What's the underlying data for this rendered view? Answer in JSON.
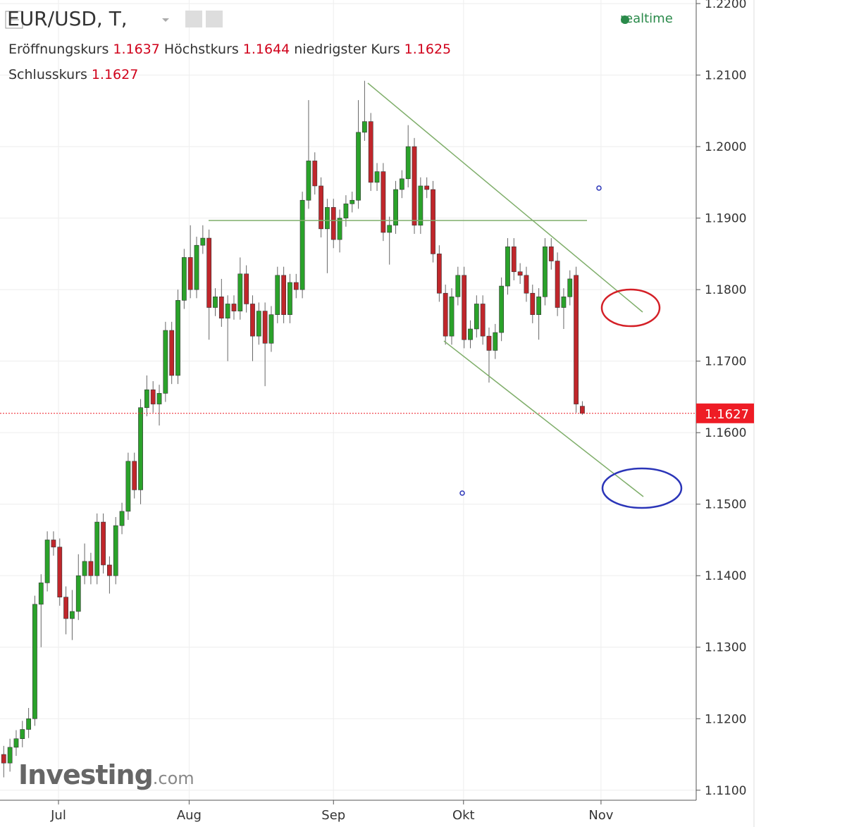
{
  "chart_data": {
    "type": "candlestick",
    "title": "EUR/USD, T,",
    "status": "realtime",
    "ohlc_legend": [
      {
        "label": "Eröffnungskurs",
        "value": 1.1637
      },
      {
        "label": "Höchstkurs",
        "value": 1.1644
      },
      {
        "label": "niedrigster Kurs",
        "value": 1.1625
      },
      {
        "label": "Schlusskurs",
        "value": 1.1627
      }
    ],
    "brand": [
      "Investing",
      ".com"
    ],
    "categories": [
      null,
      null,
      null,
      null,
      null,
      null,
      null,
      null,
      null,
      null,
      null,
      null,
      null,
      null,
      null,
      null,
      null,
      null,
      null,
      null,
      null,
      null,
      null,
      null,
      null,
      null,
      null,
      null,
      null,
      null,
      null,
      null,
      null,
      null,
      null,
      null,
      null,
      null,
      null,
      null,
      null,
      null,
      null,
      null,
      null,
      null,
      null,
      null,
      null,
      null,
      null,
      null,
      null,
      null,
      null,
      null,
      null,
      null,
      null,
      null,
      null,
      null,
      null,
      null,
      null,
      null,
      null,
      null,
      null,
      null,
      null,
      null,
      null,
      null,
      null,
      null,
      null,
      null,
      null,
      null,
      null,
      null,
      null,
      null,
      null,
      null,
      null,
      null,
      null,
      null,
      null,
      null,
      null,
      null
    ],
    "open": [
      1.115,
      1.1138,
      1.116,
      1.1172,
      1.1185,
      1.12,
      1.136,
      1.139,
      1.145,
      1.144,
      1.137,
      1.134,
      1.135,
      1.14,
      1.142,
      1.14,
      1.1475,
      1.1415,
      1.14,
      1.147,
      1.149,
      1.156,
      1.152,
      1.1635,
      1.166,
      1.164,
      1.1655,
      1.1743,
      1.168,
      1.1785,
      1.1845,
      1.18,
      1.1862,
      1.1872,
      1.1775,
      1.179,
      1.176,
      1.178,
      1.177,
      1.1822,
      1.178,
      1.1735,
      1.177,
      1.1725,
      1.1765,
      1.182,
      1.1765,
      1.181,
      1.18,
      1.1925,
      1.198,
      1.1945,
      1.1885,
      1.1915,
      1.187,
      1.19,
      1.192,
      1.1925,
      1.202,
      1.2035,
      1.195,
      1.1965,
      1.188,
      1.189,
      1.194,
      1.1955,
      1.2,
      1.189,
      1.1945,
      1.194,
      1.185,
      1.1795,
      1.1735,
      1.179,
      1.182,
      1.173,
      1.1745,
      1.178,
      1.1735,
      1.1715,
      1.174,
      1.1805,
      1.186,
      1.1825,
      1.182,
      1.1795,
      1.1765,
      1.179,
      1.186,
      1.184,
      1.1775,
      1.179,
      1.182,
      1.1637
    ],
    "high": [
      1.1162,
      1.1172,
      1.1184,
      1.1197,
      1.1215,
      1.1372,
      1.1402,
      1.1462,
      1.1462,
      1.1452,
      1.1385,
      1.138,
      1.143,
      1.1445,
      1.1432,
      1.1487,
      1.1487,
      1.1427,
      1.1482,
      1.1502,
      1.1572,
      1.1572,
      1.1647,
      1.168,
      1.1672,
      1.1667,
      1.1755,
      1.1755,
      1.18,
      1.1857,
      1.189,
      1.1874,
      1.189,
      1.1884,
      1.1802,
      1.1815,
      1.1792,
      1.1792,
      1.1845,
      1.1834,
      1.1792,
      1.1782,
      1.1782,
      1.1777,
      1.1832,
      1.1832,
      1.1822,
      1.1822,
      1.1937,
      1.2065,
      1.1992,
      1.1957,
      1.1927,
      1.1927,
      1.1912,
      1.1932,
      1.1937,
      1.2065,
      1.2092,
      1.2047,
      1.1977,
      1.1977,
      1.1902,
      1.1952,
      1.1967,
      1.203,
      1.2012,
      1.1957,
      1.1957,
      1.1952,
      1.1862,
      1.1807,
      1.1802,
      1.1832,
      1.1832,
      1.1757,
      1.1792,
      1.1792,
      1.1747,
      1.1752,
      1.1817,
      1.1872,
      1.1872,
      1.1837,
      1.1832,
      1.1807,
      1.1802,
      1.1872,
      1.1872,
      1.1852,
      1.1802,
      1.1827,
      1.1832,
      1.1644
    ],
    "low": [
      1.1118,
      1.1126,
      1.1148,
      1.116,
      1.1173,
      1.119,
      1.13,
      1.1378,
      1.1428,
      1.1358,
      1.1318,
      1.131,
      1.1338,
      1.1388,
      1.1388,
      1.1388,
      1.1403,
      1.1375,
      1.1388,
      1.1458,
      1.1478,
      1.1508,
      1.15,
      1.1623,
      1.1628,
      1.161,
      1.1643,
      1.1668,
      1.1668,
      1.1773,
      1.1788,
      1.1788,
      1.185,
      1.173,
      1.1763,
      1.1748,
      1.17,
      1.1758,
      1.1758,
      1.1768,
      1.17,
      1.1723,
      1.1665,
      1.1713,
      1.1753,
      1.1753,
      1.1753,
      1.1788,
      1.1788,
      1.1913,
      1.1933,
      1.1873,
      1.1823,
      1.1858,
      1.1852,
      1.1888,
      1.1908,
      1.1913,
      1.2008,
      1.1938,
      1.1938,
      1.1868,
      1.1835,
      1.1878,
      1.1928,
      1.1943,
      1.1878,
      1.1878,
      1.1928,
      1.1838,
      1.1783,
      1.1723,
      1.1723,
      1.1778,
      1.1718,
      1.1718,
      1.1733,
      1.1723,
      1.167,
      1.1703,
      1.1728,
      1.1793,
      1.1813,
      1.1808,
      1.1783,
      1.1753,
      1.173,
      1.1778,
      1.1828,
      1.1763,
      1.1745,
      1.1778,
      1.1628,
      1.1625
    ],
    "close": [
      1.1138,
      1.116,
      1.1172,
      1.1185,
      1.12,
      1.136,
      1.139,
      1.145,
      1.144,
      1.137,
      1.134,
      1.135,
      1.14,
      1.142,
      1.14,
      1.1475,
      1.1415,
      1.14,
      1.147,
      1.149,
      1.156,
      1.152,
      1.1635,
      1.166,
      1.164,
      1.1655,
      1.1743,
      1.168,
      1.1785,
      1.1845,
      1.18,
      1.1862,
      1.1872,
      1.1775,
      1.179,
      1.176,
      1.178,
      1.177,
      1.1822,
      1.178,
      1.1735,
      1.177,
      1.1725,
      1.1765,
      1.182,
      1.1765,
      1.181,
      1.18,
      1.1925,
      1.198,
      1.1945,
      1.1885,
      1.1915,
      1.187,
      1.19,
      1.192,
      1.1925,
      1.202,
      1.2035,
      1.195,
      1.1965,
      1.188,
      1.189,
      1.194,
      1.1955,
      1.2,
      1.189,
      1.1945,
      1.194,
      1.185,
      1.1795,
      1.1735,
      1.179,
      1.182,
      1.173,
      1.1745,
      1.178,
      1.1735,
      1.1715,
      1.174,
      1.1805,
      1.186,
      1.1825,
      1.182,
      1.1795,
      1.1765,
      1.179,
      1.186,
      1.184,
      1.1775,
      1.179,
      1.1815,
      1.164,
      1.1627
    ],
    "up_color": "#2aa22a",
    "down_color": "#c0262b",
    "last_price": 1.1627,
    "last_price_color": "#ee1c25",
    "ylim": [
      1.1086,
      1.2205
    ],
    "yticks": [
      {
        "value": 1.11,
        "label": "1.1100"
      },
      {
        "value": 1.12,
        "label": "1.1200"
      },
      {
        "value": 1.13,
        "label": "1.1300"
      },
      {
        "value": 1.14,
        "label": "1.1400"
      },
      {
        "value": 1.15,
        "label": "1.1500"
      },
      {
        "value": 1.16,
        "label": "1.1600"
      },
      {
        "value": 1.17,
        "label": "1.1700"
      },
      {
        "value": 1.18,
        "label": "1.1800"
      },
      {
        "value": 1.19,
        "label": "1.1900"
      },
      {
        "value": 1.2,
        "label": "1.2000"
      },
      {
        "value": 1.21,
        "label": "1.2100"
      },
      {
        "value": 1.22,
        "label": "1.2200"
      }
    ],
    "xlim": [
      -0.6,
      111.3
    ],
    "xticks": [
      {
        "value": 8.8,
        "label": "Jul"
      },
      {
        "value": 29.8,
        "label": "Aug"
      },
      {
        "value": 53.0,
        "label": "Sep"
      },
      {
        "value": 73.9,
        "label": "Okt"
      },
      {
        "value": 96.0,
        "label": "Nov"
      }
    ],
    "grid": true
  }
}
